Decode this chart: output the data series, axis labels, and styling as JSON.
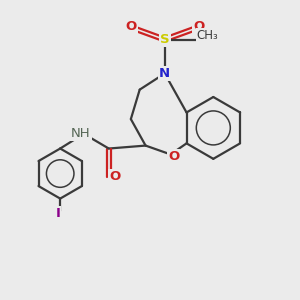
{
  "background_color": "#ebebeb",
  "bond_color": "#3a3a3a",
  "N_color": "#2222cc",
  "O_color": "#cc2222",
  "S_color": "#cccc00",
  "I_color": "#8b008b",
  "NH_color": "#556655",
  "figsize": [
    3.0,
    3.0
  ],
  "dpi": 100,
  "xlim": [
    0,
    10
  ],
  "ylim": [
    0,
    10
  ]
}
